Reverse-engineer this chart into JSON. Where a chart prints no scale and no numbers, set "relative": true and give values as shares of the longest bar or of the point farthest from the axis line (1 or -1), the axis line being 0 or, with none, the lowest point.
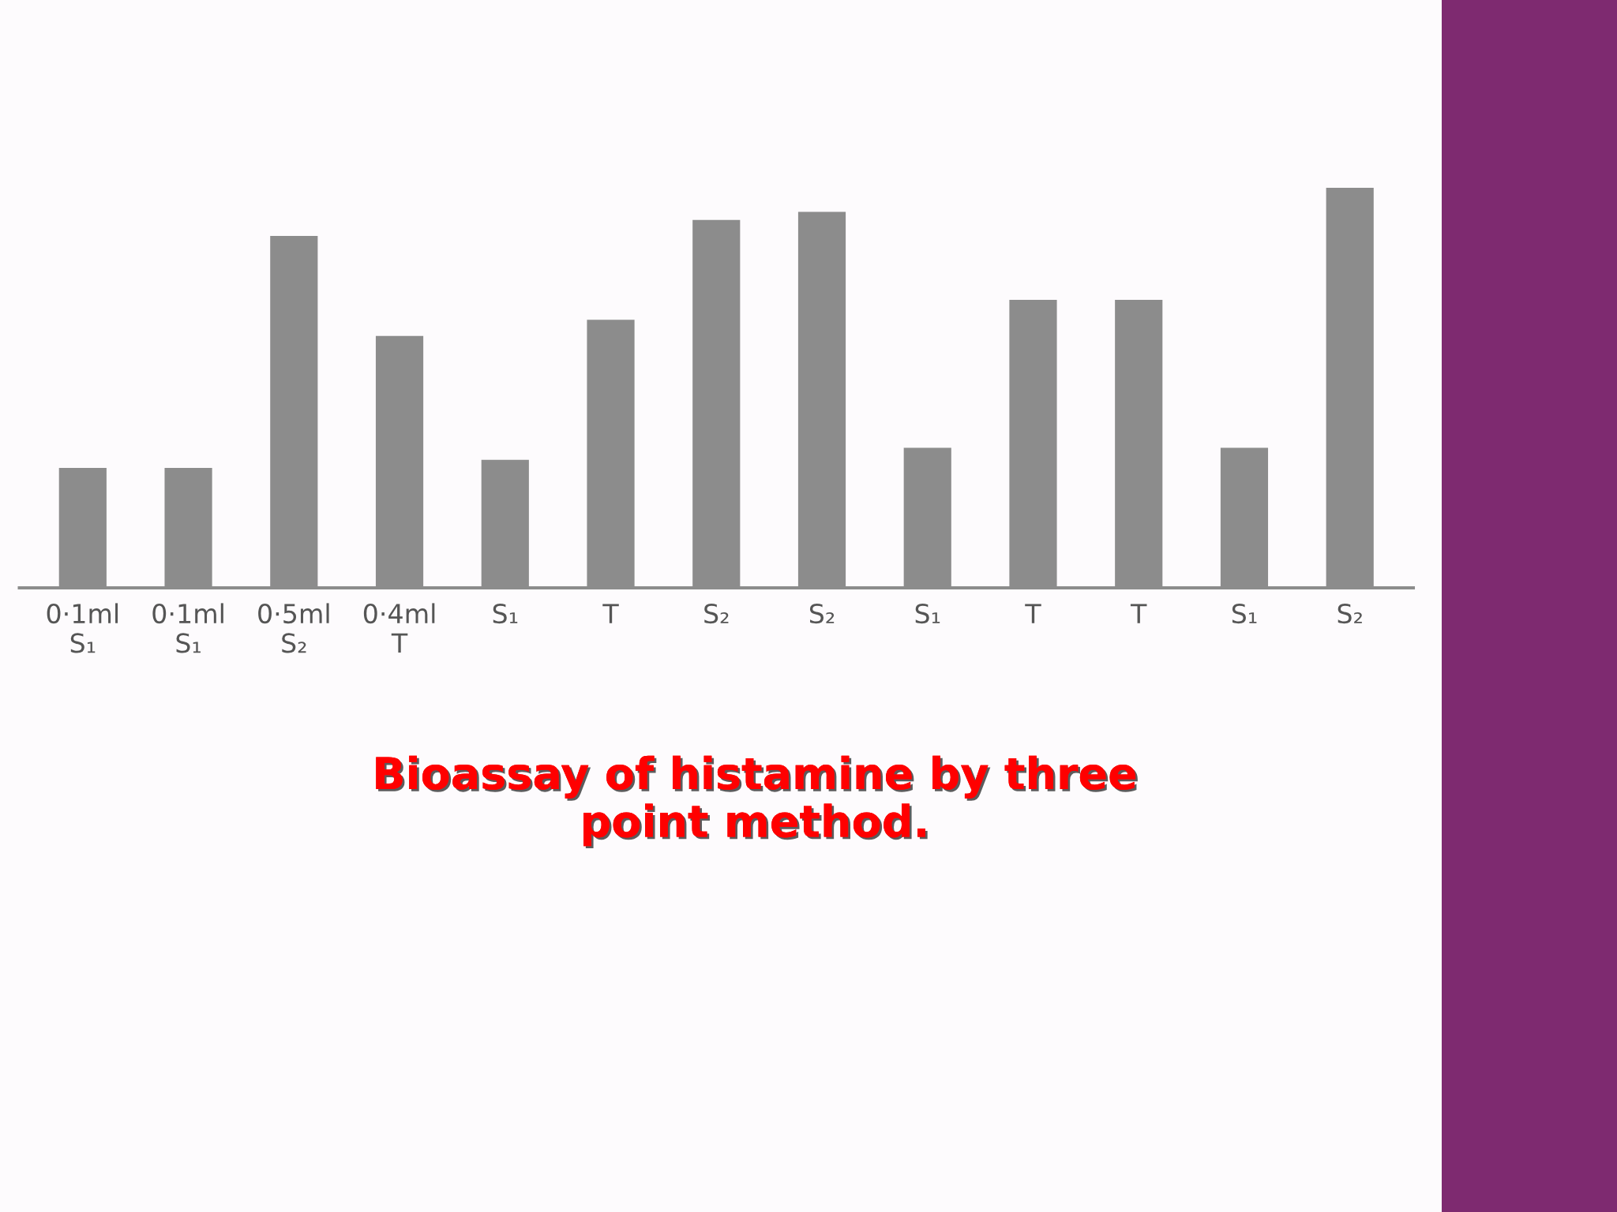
{
  "chart_data": {
    "type": "bar",
    "relative": true,
    "title": "Bioassay of histamine by three\npoint method.",
    "categories": [
      "0·1ml\nS₁",
      "0·1ml\nS₁",
      "0·5ml\nS₂",
      "0·4ml\nT",
      "S₁",
      "T",
      "S₂",
      "S₂",
      "S₁",
      "T",
      "T",
      "S₁",
      "S₂"
    ],
    "values": [
      0.3,
      0.3,
      0.88,
      0.63,
      0.32,
      0.67,
      0.92,
      0.94,
      0.35,
      0.72,
      0.72,
      0.35,
      1.0
    ],
    "color": "#8c8c8c"
  }
}
